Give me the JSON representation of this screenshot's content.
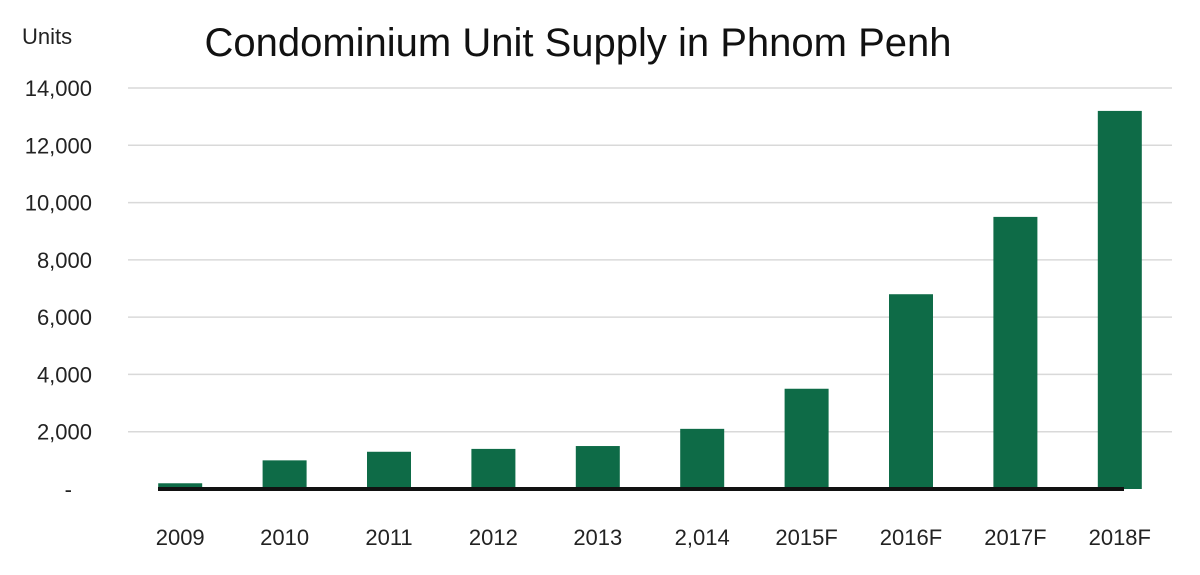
{
  "chart_data": {
    "type": "bar",
    "title": "Condominium Unit Supply in Phnom Penh",
    "ylabel": "Units",
    "xlabel": "",
    "categories": [
      "2009",
      "2010",
      "2011",
      "2012",
      "2013",
      "2,014",
      "2015F",
      "2016F",
      "2017F",
      "2018F"
    ],
    "values": [
      200,
      1000,
      1300,
      1400,
      1500,
      2100,
      3500,
      6800,
      9500,
      13200
    ],
    "ylim": [
      0,
      14000
    ],
    "yticks": [
      0,
      2000,
      4000,
      6000,
      8000,
      10000,
      12000,
      14000
    ],
    "ytick_labels": [
      "-",
      "2,000",
      "4,000",
      "6,000",
      "8,000",
      "10,000",
      "12,000",
      "14,000"
    ],
    "grid": true,
    "bar_color": "#0e6b47"
  }
}
